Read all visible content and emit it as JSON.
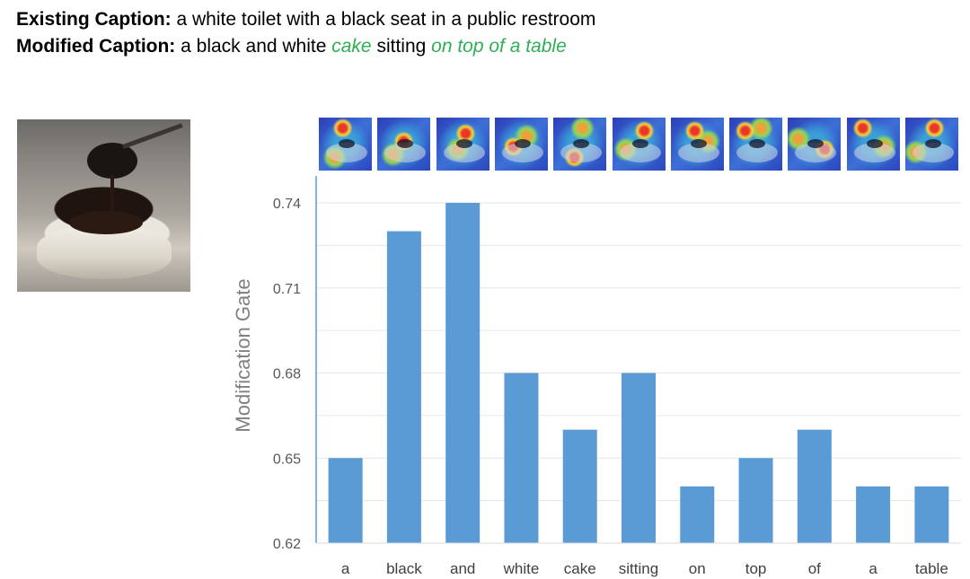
{
  "header": {
    "existing_label": "Existing Caption:",
    "existing_text": " a white toilet with a black seat in a public restroom",
    "modified_label": "Modified Caption:",
    "modified_parts": [
      {
        "text": " a black and white ",
        "highlight": false
      },
      {
        "text": "cake",
        "highlight": true
      },
      {
        "text": " sitting ",
        "highlight": false
      },
      {
        "text": "on top of a table",
        "highlight": true
      }
    ]
  },
  "colors": {
    "bar": "#5b9bd5",
    "highlight": "#2fae55",
    "gridline": "#e6e6e6",
    "axis": "#5b9bd5"
  },
  "chart_data": {
    "type": "bar",
    "categories": [
      "a",
      "black",
      "and",
      "white",
      "cake",
      "sitting",
      "on",
      "top",
      "of",
      "a",
      "table"
    ],
    "values": [
      0.65,
      0.73,
      0.74,
      0.68,
      0.66,
      0.68,
      0.64,
      0.65,
      0.66,
      0.64,
      0.64
    ],
    "ylabel": "Modification Gate",
    "xlabel": "",
    "ylim": [
      0.62,
      0.745
    ],
    "yticks": [
      0.62,
      0.65,
      0.68,
      0.71,
      0.74
    ],
    "ytick_labels": [
      "0.62",
      "0.65",
      "0.68",
      "0.71",
      "0.74"
    ],
    "grid": true,
    "legend": "none"
  }
}
